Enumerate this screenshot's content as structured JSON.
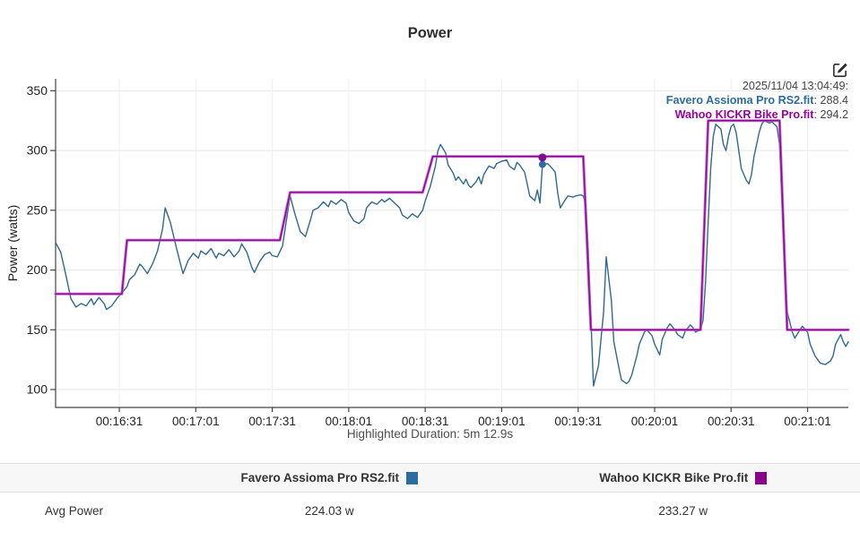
{
  "title": "Power",
  "tooltip": {
    "timestamp": "2025/11/04 13:04:49:",
    "series": [
      {
        "label": "Favero Assioma Pro RS2.fit",
        "suffix": ": 288.4",
        "color": "#2b6d9e"
      },
      {
        "label": "Wahoo KICKR Bike Pro.fit",
        "suffix": ": 294.2",
        "color": "#99009c"
      }
    ]
  },
  "chart_data": {
    "type": "line",
    "title": "Power",
    "xlabel": "",
    "ylabel": "Power (watts)",
    "grid": true,
    "ylim": [
      85,
      360
    ],
    "y_ticks": [
      100,
      150,
      200,
      250,
      300,
      350
    ],
    "x_domain_seconds": [
      966,
      1277
    ],
    "x_ticks": [
      {
        "t": 991,
        "label": "00:16:31"
      },
      {
        "t": 1021,
        "label": "00:17:01"
      },
      {
        "t": 1051,
        "label": "00:17:31"
      },
      {
        "t": 1081,
        "label": "00:18:01"
      },
      {
        "t": 1111,
        "label": "00:18:31"
      },
      {
        "t": 1141,
        "label": "00:19:01"
      },
      {
        "t": 1171,
        "label": "00:19:31"
      },
      {
        "t": 1201,
        "label": "00:20:01"
      },
      {
        "t": 1231,
        "label": "00:20:31"
      },
      {
        "t": 1261,
        "label": "00:21:01"
      }
    ],
    "series": [
      {
        "name": "Favero Assioma Pro RS2.fit",
        "slug": "favero",
        "color": "#31688e",
        "width": 1.4,
        "points": [
          [
            966,
            223
          ],
          [
            968,
            215
          ],
          [
            970,
            196
          ],
          [
            972,
            176
          ],
          [
            974,
            169
          ],
          [
            976,
            172
          ],
          [
            978,
            170
          ],
          [
            980,
            176
          ],
          [
            981,
            171
          ],
          [
            983,
            177
          ],
          [
            985,
            172
          ],
          [
            986,
            167
          ],
          [
            988,
            170
          ],
          [
            990,
            176
          ],
          [
            992,
            181
          ],
          [
            994,
            186
          ],
          [
            995,
            192
          ],
          [
            997,
            196
          ],
          [
            999,
            205
          ],
          [
            1000,
            203
          ],
          [
            1002,
            197
          ],
          [
            1004,
            205
          ],
          [
            1006,
            216
          ],
          [
            1008,
            235
          ],
          [
            1009,
            252
          ],
          [
            1011,
            240
          ],
          [
            1013,
            222
          ],
          [
            1015,
            205
          ],
          [
            1016,
            197
          ],
          [
            1018,
            208
          ],
          [
            1020,
            214
          ],
          [
            1022,
            210
          ],
          [
            1023,
            216
          ],
          [
            1025,
            213
          ],
          [
            1027,
            218
          ],
          [
            1029,
            210
          ],
          [
            1030,
            214
          ],
          [
            1032,
            212
          ],
          [
            1034,
            217
          ],
          [
            1036,
            211
          ],
          [
            1038,
            216
          ],
          [
            1039,
            222
          ],
          [
            1041,
            215
          ],
          [
            1043,
            202
          ],
          [
            1044,
            198
          ],
          [
            1046,
            207
          ],
          [
            1048,
            213
          ],
          [
            1050,
            215
          ],
          [
            1051,
            212
          ],
          [
            1053,
            211
          ],
          [
            1055,
            220
          ],
          [
            1057,
            248
          ],
          [
            1058,
            262
          ],
          [
            1060,
            246
          ],
          [
            1062,
            232
          ],
          [
            1064,
            228
          ],
          [
            1066,
            242
          ],
          [
            1067,
            250
          ],
          [
            1069,
            252
          ],
          [
            1071,
            257
          ],
          [
            1073,
            253
          ],
          [
            1074,
            258
          ],
          [
            1076,
            255
          ],
          [
            1078,
            259
          ],
          [
            1080,
            256
          ],
          [
            1081,
            248
          ],
          [
            1083,
            241
          ],
          [
            1085,
            239
          ],
          [
            1087,
            243
          ],
          [
            1088,
            252
          ],
          [
            1090,
            257
          ],
          [
            1092,
            255
          ],
          [
            1094,
            259
          ],
          [
            1095,
            257
          ],
          [
            1097,
            260
          ],
          [
            1099,
            256
          ],
          [
            1101,
            252
          ],
          [
            1102,
            246
          ],
          [
            1104,
            243
          ],
          [
            1106,
            247
          ],
          [
            1108,
            244
          ],
          [
            1110,
            250
          ],
          [
            1111,
            258
          ],
          [
            1113,
            270
          ],
          [
            1115,
            287
          ],
          [
            1116,
            300
          ],
          [
            1117,
            305
          ],
          [
            1119,
            298
          ],
          [
            1120,
            288
          ],
          [
            1122,
            281
          ],
          [
            1123,
            275
          ],
          [
            1124,
            278
          ],
          [
            1126,
            272
          ],
          [
            1127,
            276
          ],
          [
            1128,
            271
          ],
          [
            1129,
            269
          ],
          [
            1131,
            274
          ],
          [
            1132,
            278
          ],
          [
            1133,
            272
          ],
          [
            1134,
            280
          ],
          [
            1136,
            287
          ],
          [
            1138,
            285
          ],
          [
            1139,
            289
          ],
          [
            1141,
            291
          ],
          [
            1143,
            292
          ],
          [
            1144,
            287
          ],
          [
            1146,
            284
          ],
          [
            1147,
            290
          ],
          [
            1148,
            288
          ],
          [
            1150,
            282
          ],
          [
            1151,
            272
          ],
          [
            1152,
            262
          ],
          [
            1154,
            258
          ],
          [
            1155,
            267
          ],
          [
            1156,
            256
          ],
          [
            1157,
            288
          ],
          [
            1159,
            289
          ],
          [
            1160,
            287
          ],
          [
            1162,
            282
          ],
          [
            1163,
            264
          ],
          [
            1164,
            252
          ],
          [
            1166,
            259
          ],
          [
            1167,
            262
          ],
          [
            1169,
            261
          ],
          [
            1170,
            262
          ],
          [
            1172,
            263
          ],
          [
            1173,
            262
          ],
          [
            1174,
            255
          ],
          [
            1175,
            215
          ],
          [
            1176,
            160
          ],
          [
            1177,
            103
          ],
          [
            1179,
            120
          ],
          [
            1181,
            165
          ],
          [
            1182,
            211
          ],
          [
            1184,
            175
          ],
          [
            1185,
            140
          ],
          [
            1187,
            118
          ],
          [
            1188,
            108
          ],
          [
            1190,
            105
          ],
          [
            1191,
            107
          ],
          [
            1192,
            112
          ],
          [
            1194,
            128
          ],
          [
            1195,
            138
          ],
          [
            1197,
            148
          ],
          [
            1198,
            150
          ],
          [
            1200,
            145
          ],
          [
            1201,
            138
          ],
          [
            1203,
            129
          ],
          [
            1204,
            142
          ],
          [
            1206,
            152
          ],
          [
            1207,
            155
          ],
          [
            1209,
            150
          ],
          [
            1210,
            146
          ],
          [
            1212,
            143
          ],
          [
            1213,
            149
          ],
          [
            1215,
            154
          ],
          [
            1216,
            152
          ],
          [
            1217,
            148
          ],
          [
            1219,
            150
          ],
          [
            1220,
            158
          ],
          [
            1221,
            190
          ],
          [
            1222,
            240
          ],
          [
            1223,
            285
          ],
          [
            1224,
            312
          ],
          [
            1225,
            322
          ],
          [
            1227,
            318
          ],
          [
            1228,
            305
          ],
          [
            1229,
            300
          ],
          [
            1230,
            312
          ],
          [
            1231,
            320
          ],
          [
            1232,
            322
          ],
          [
            1233,
            315
          ],
          [
            1234,
            300
          ],
          [
            1235,
            285
          ],
          [
            1237,
            275
          ],
          [
            1238,
            272
          ],
          [
            1239,
            280
          ],
          [
            1240,
            295
          ],
          [
            1241,
            305
          ],
          [
            1242,
            315
          ],
          [
            1243,
            322
          ],
          [
            1244,
            325
          ],
          [
            1246,
            323
          ],
          [
            1247,
            324
          ],
          [
            1248,
            322
          ],
          [
            1249,
            320
          ],
          [
            1250,
            305
          ],
          [
            1251,
            255
          ],
          [
            1252,
            200
          ],
          [
            1253,
            165
          ],
          [
            1255,
            148
          ],
          [
            1256,
            143
          ],
          [
            1258,
            150
          ],
          [
            1259,
            153
          ],
          [
            1261,
            148
          ],
          [
            1262,
            138
          ],
          [
            1264,
            128
          ],
          [
            1266,
            122
          ],
          [
            1268,
            121
          ],
          [
            1270,
            124
          ],
          [
            1271,
            128
          ],
          [
            1272,
            138
          ],
          [
            1274,
            146
          ],
          [
            1275,
            140
          ],
          [
            1276,
            136
          ],
          [
            1277,
            140
          ]
        ]
      },
      {
        "name": "Wahoo KICKR Bike Pro.fit",
        "slug": "wahoo",
        "color": "#7d0f8f",
        "halo": "#cc55cc",
        "width": 1.4,
        "points": [
          [
            966,
            180
          ],
          [
            992,
            180
          ],
          [
            994,
            225
          ],
          [
            1054,
            225
          ],
          [
            1058,
            265
          ],
          [
            1110,
            265
          ],
          [
            1114,
            295
          ],
          [
            1173,
            295
          ],
          [
            1176,
            150
          ],
          [
            1219,
            150
          ],
          [
            1222,
            325
          ],
          [
            1250,
            325
          ],
          [
            1253,
            150
          ],
          [
            1277,
            150
          ]
        ]
      }
    ],
    "marker": {
      "t": 1157,
      "points": [
        {
          "series": "Favero Assioma Pro RS2.fit",
          "slug": "favero",
          "value": 288.4,
          "color": "#2b6d9e"
        },
        {
          "series": "Wahoo KICKR Bike Pro.fit",
          "slug": "wahoo",
          "value": 294.2,
          "color": "#7d0f8f"
        }
      ]
    },
    "footnote": "Highlighted Duration: 5m 12.9s"
  },
  "summary_table": {
    "columns": [
      {
        "label": "Favero Assioma Pro RS2.fit",
        "color": "#2b6d9e"
      },
      {
        "label": "Wahoo KICKR Bike Pro.fit",
        "color": "#8b008b"
      }
    ],
    "rows": [
      {
        "label": "Avg Power",
        "values": [
          "224.03 w",
          "233.27 w"
        ]
      }
    ]
  }
}
